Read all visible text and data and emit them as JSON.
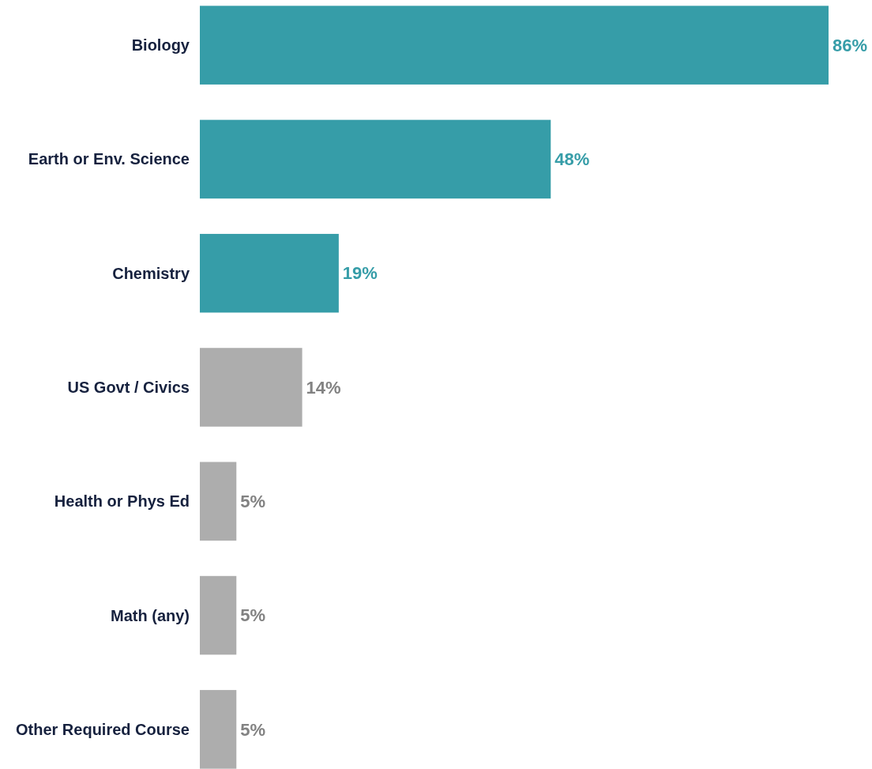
{
  "chart_data": {
    "type": "bar",
    "orientation": "horizontal",
    "categories": [
      "Biology",
      "Earth or Env. Science",
      "Chemistry",
      "US Govt / Civics",
      "Health or Phys Ed",
      "Math (any)",
      "Other Required Course"
    ],
    "values": [
      86,
      48,
      19,
      14,
      5,
      5,
      5
    ],
    "value_labels": [
      "86%",
      "48%",
      "19%",
      "14%",
      "5%",
      "5%",
      "5%"
    ],
    "colors": [
      "#369da8",
      "#369da8",
      "#369da8",
      "#adadad",
      "#adadad",
      "#adadad",
      "#adadad"
    ]
  }
}
